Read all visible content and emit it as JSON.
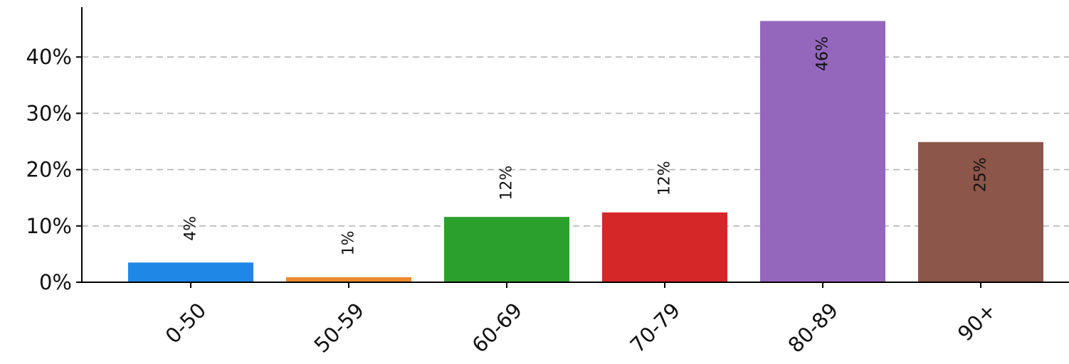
{
  "chart_data": {
    "type": "bar",
    "title": "",
    "xlabel": "",
    "ylabel": "",
    "categories": [
      "0-50",
      "50-59",
      "60-69",
      "70-79",
      "80-89",
      "90+"
    ],
    "values": [
      3.5,
      0.9,
      11.6,
      12.4,
      46.4,
      24.9
    ],
    "data_labels": [
      "4%",
      "1%",
      "12%",
      "12%",
      "46%",
      "25%"
    ],
    "colors": [
      "#1f87e5",
      "#ec8a2f",
      "#2ca02c",
      "#d62728",
      "#9467bd",
      "#8c564b"
    ],
    "y_ticks": [
      0,
      10,
      20,
      30,
      40
    ],
    "y_tick_labels": [
      "0%",
      "10%",
      "20%",
      "30%",
      "40%"
    ],
    "ylim": [
      0,
      50
    ],
    "grid": "horizontal dashed",
    "legend": "none"
  }
}
